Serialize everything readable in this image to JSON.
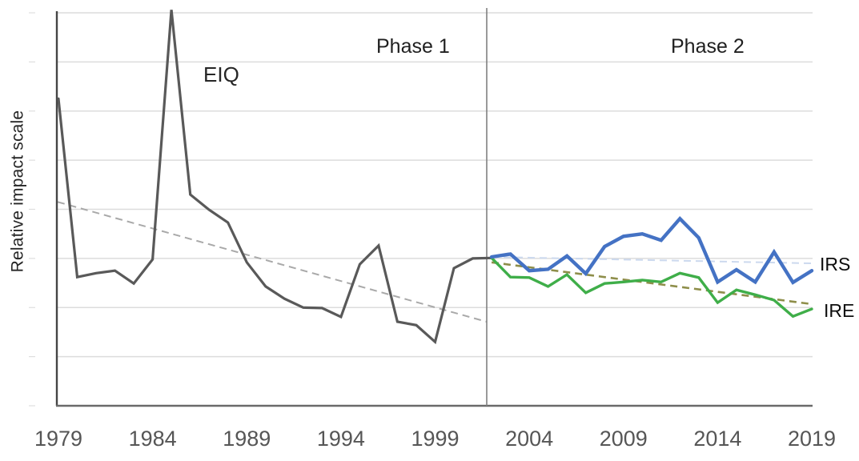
{
  "chart_data": {
    "type": "line",
    "title": "",
    "ylabel": "Relative impact scale",
    "xlabel": "",
    "x_tick_labels": [
      1979,
      1984,
      1989,
      1994,
      1999,
      2004,
      2009,
      2014,
      2019
    ],
    "x_range": [
      1979,
      2019
    ],
    "y_axis": {
      "tick_labels_visible": false,
      "gridline_count": 8,
      "units": "relative scale (1 unit per gridline, 0 at baseline)",
      "ylim": [
        0,
        8
      ]
    },
    "phase_labels": [
      "Phase 1",
      "Phase 2"
    ],
    "phase_divider_year": 2001.8,
    "series": [
      {
        "name": "EIQ",
        "phase": 1,
        "color": "#595959",
        "years": [
          1979,
          1980,
          1981,
          1982,
          1983,
          1984,
          1985,
          1986,
          1987,
          1988,
          1989,
          1990,
          1991,
          1992,
          1993,
          1994,
          1995,
          1996,
          1997,
          1998,
          1999,
          2000,
          2001,
          2002
        ],
        "values": [
          6.25,
          2.62,
          2.7,
          2.75,
          2.49,
          2.98,
          8.06,
          4.3,
          3.99,
          3.73,
          2.92,
          2.43,
          2.18,
          2.0,
          1.99,
          1.81,
          2.88,
          3.26,
          1.71,
          1.64,
          1.3,
          2.8,
          3.0,
          3.01
        ]
      },
      {
        "name": "IRS",
        "phase": 2,
        "color": "#4472c4",
        "years": [
          2002,
          2003,
          2004,
          2005,
          2006,
          2007,
          2008,
          2009,
          2010,
          2011,
          2012,
          2013,
          2014,
          2015,
          2016,
          2017,
          2018,
          2019
        ],
        "values": [
          3.03,
          3.09,
          2.75,
          2.78,
          3.05,
          2.69,
          3.24,
          3.45,
          3.5,
          3.37,
          3.81,
          3.42,
          2.52,
          2.77,
          2.52,
          3.13,
          2.51,
          2.75
        ]
      },
      {
        "name": "IRE",
        "phase": 2,
        "color": "#3fae49",
        "years": [
          2002,
          2003,
          2004,
          2005,
          2006,
          2007,
          2008,
          2009,
          2010,
          2011,
          2012,
          2013,
          2014,
          2015,
          2016,
          2017,
          2018,
          2019
        ],
        "values": [
          3.01,
          2.62,
          2.61,
          2.43,
          2.67,
          2.3,
          2.49,
          2.52,
          2.56,
          2.52,
          2.7,
          2.61,
          2.1,
          2.36,
          2.26,
          2.15,
          1.82,
          1.97
        ]
      }
    ],
    "trendlines": [
      {
        "series": "EIQ",
        "phase": 1,
        "style": "dashed",
        "color": "#a9a9a9",
        "start_year": 1979,
        "start_value": 4.15,
        "end_year": 2001.8,
        "end_value": 1.71
      },
      {
        "series": "IRS",
        "phase": 2,
        "style": "dashed",
        "color": "#ccd9ee",
        "start_year": 2002,
        "start_value": 3.03,
        "end_year": 2019,
        "end_value": 2.9
      },
      {
        "series": "IRE",
        "phase": 2,
        "style": "dashed",
        "color": "#8e8e4a",
        "start_year": 2002,
        "start_value": 2.92,
        "end_year": 2019,
        "end_value": 2.07
      }
    ],
    "legend": "inline labels at line ends (IRS, IRE) and above line (EIQ)",
    "grid": "horizontal light-gray gridlines"
  }
}
